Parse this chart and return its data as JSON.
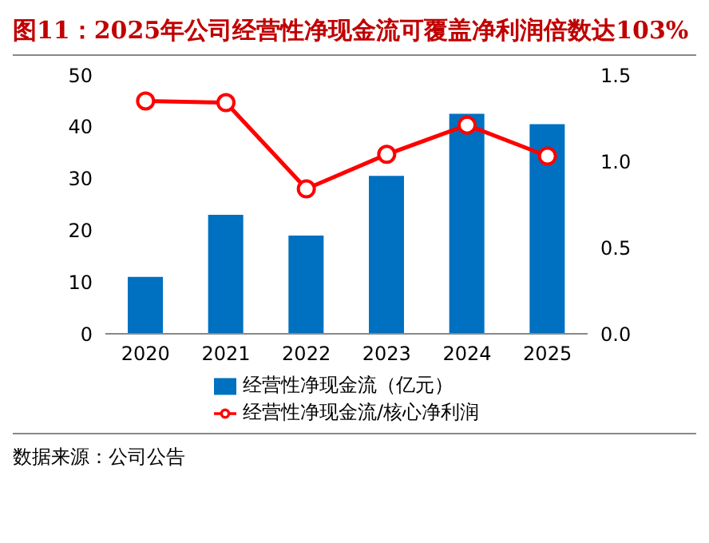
{
  "chart_data": {
    "type": "bar",
    "title": "图11：2025年公司经营性净现金流可覆盖净利润倍数达103%",
    "categories": [
      "2020",
      "2021",
      "2022",
      "2023",
      "2024",
      "2025"
    ],
    "series": [
      {
        "name": "经营性净现金流（亿元）",
        "color": "#0070c0",
        "values": [
          11,
          23,
          19,
          30.5,
          42.5,
          40.5
        ]
      },
      {
        "name": "经营性净现金流/核心净利润",
        "type": "line",
        "axis": "y2",
        "color": "#ff0000",
        "values": [
          1.35,
          1.34,
          0.84,
          1.04,
          1.21,
          1.03
        ]
      }
    ],
    "ylim": [
      0,
      50
    ],
    "yticks": [
      0,
      10,
      20,
      30,
      40,
      50
    ],
    "y2lim": [
      0,
      1.5
    ],
    "y2ticks": [
      {
        "value": 0,
        "label": "0.0"
      },
      0.5,
      {
        "value": 1,
        "label": "1.0"
      },
      1.5
    ],
    "grid": false,
    "legend": "bottom",
    "marker": "circle",
    "annotations": [
      "数据来源：公司公告"
    ]
  }
}
